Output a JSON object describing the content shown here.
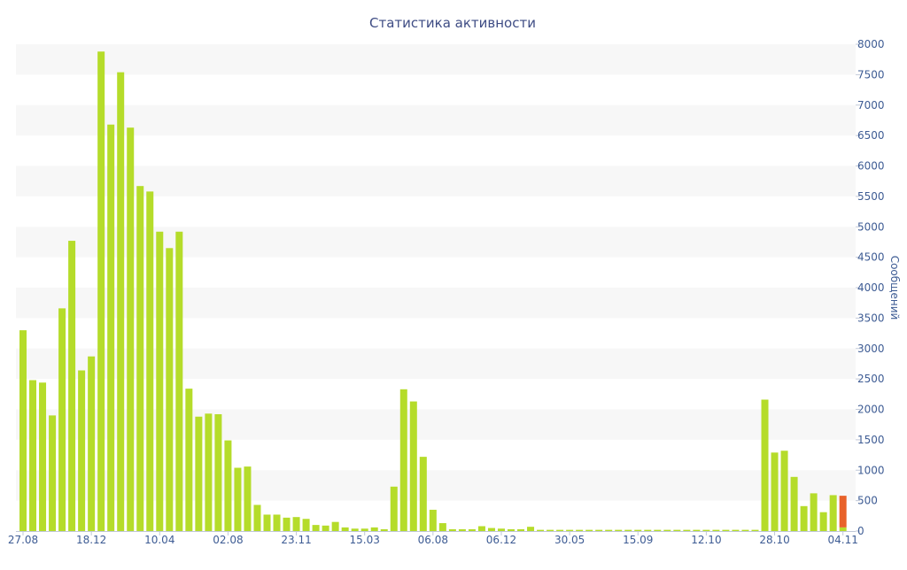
{
  "chart_data": {
    "type": "bar",
    "title": "Статистика активности",
    "xlabel": "",
    "ylabel": "Сообщений",
    "ylim": [
      0,
      8000
    ],
    "y_ticks": [
      "0",
      "500",
      "1000",
      "1500",
      "2000",
      "2500",
      "3000",
      "3500",
      "4000",
      "4500",
      "5000",
      "5500",
      "6000",
      "6500",
      "7000",
      "7500",
      "8000"
    ],
    "x_tick_labels": [
      {
        "label": "27.08",
        "index": 0
      },
      {
        "label": "18.12",
        "index": 7
      },
      {
        "label": "10.04",
        "index": 14
      },
      {
        "label": "02.08",
        "index": 21
      },
      {
        "label": "23.11",
        "index": 28
      },
      {
        "label": "15.03",
        "index": 35
      },
      {
        "label": "06.08",
        "index": 42
      },
      {
        "label": "06.12",
        "index": 49
      },
      {
        "label": "30.05",
        "index": 56
      },
      {
        "label": "15.09",
        "index": 63
      },
      {
        "label": "12.10",
        "index": 70
      },
      {
        "label": "28.10",
        "index": 77
      },
      {
        "label": "04.11",
        "index": 84
      }
    ],
    "grid": true,
    "background_bands": "alternating light gray",
    "y_axis_position": "right",
    "colors": {
      "primary": "#b5dc2a",
      "highlight": "#e8622a",
      "band": "#f7f7f7",
      "text": "#3e5c94"
    },
    "series": [
      {
        "values": [
          3300,
          2480,
          2440,
          1900,
          3660,
          4770,
          2640,
          2870,
          7880,
          6680,
          7540,
          6630,
          5670,
          5580,
          4920,
          4650,
          4920,
          2340,
          1880,
          1930,
          1920,
          1490,
          1040,
          1060,
          430,
          270,
          270,
          220,
          230,
          200,
          100,
          90,
          150,
          60,
          40,
          40,
          60,
          30,
          730,
          2330,
          2130,
          1220,
          350,
          130,
          30,
          30,
          30,
          80,
          50,
          40,
          30,
          30,
          70,
          20,
          20,
          20,
          20,
          20,
          20,
          20,
          20,
          20,
          20,
          20,
          20,
          20,
          20,
          20,
          20,
          20,
          20,
          20,
          20,
          20,
          20,
          20,
          2160,
          1290,
          1320,
          890,
          410,
          620,
          310,
          590,
          60
        ]
      },
      {
        "values": [
          0,
          0,
          0,
          0,
          0,
          0,
          0,
          0,
          0,
          0,
          0,
          0,
          0,
          0,
          0,
          0,
          0,
          0,
          0,
          0,
          0,
          0,
          0,
          0,
          0,
          0,
          0,
          0,
          0,
          0,
          0,
          0,
          0,
          0,
          0,
          0,
          0,
          0,
          0,
          0,
          0,
          0,
          0,
          0,
          0,
          0,
          0,
          0,
          0,
          0,
          0,
          0,
          0,
          0,
          0,
          0,
          0,
          0,
          0,
          0,
          0,
          0,
          0,
          0,
          0,
          0,
          0,
          0,
          0,
          0,
          0,
          0,
          0,
          0,
          0,
          0,
          0,
          0,
          0,
          0,
          0,
          0,
          0,
          0,
          520
        ]
      }
    ]
  }
}
